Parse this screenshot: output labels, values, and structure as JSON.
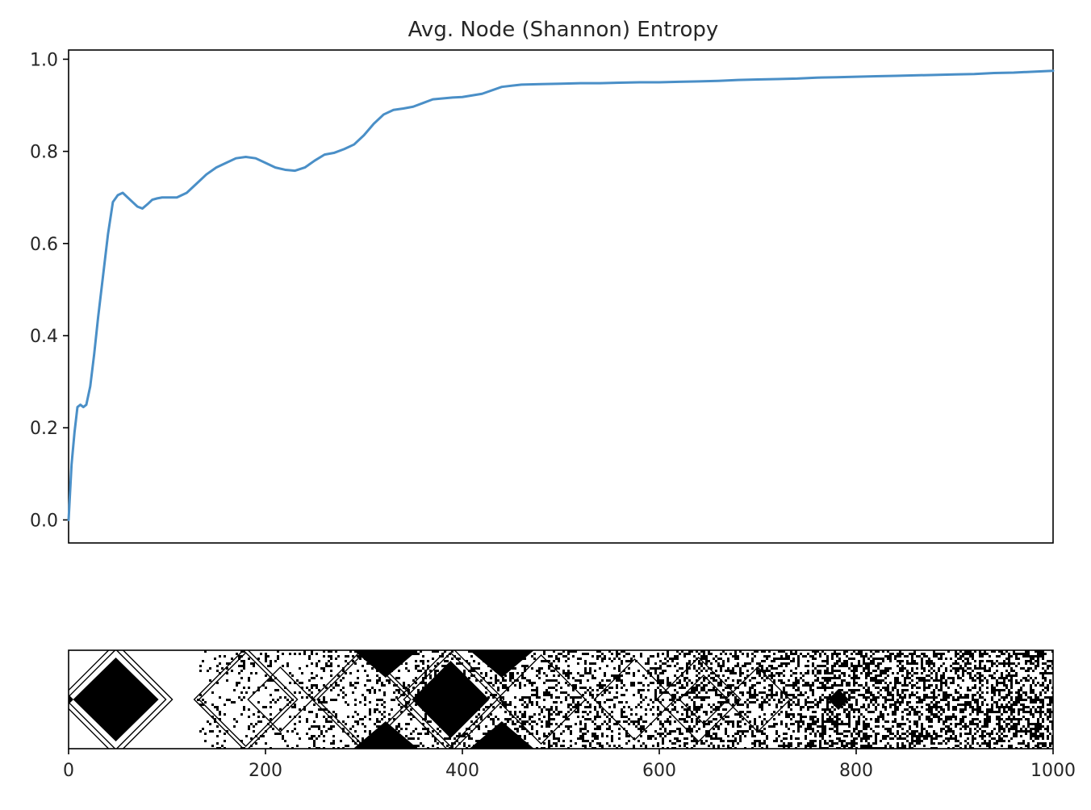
{
  "chart_data": [
    {
      "type": "line",
      "title": "Avg. Node (Shannon) Entropy",
      "xlabel": "",
      "ylabel": "",
      "xlim": [
        0,
        1000
      ],
      "ylim": [
        -0.05,
        1.02
      ],
      "yticks": [
        "0.0",
        "0.2",
        "0.4",
        "0.6",
        "0.8",
        "1.0"
      ],
      "grid": false,
      "color": "#4a8fc7",
      "series": [
        {
          "x": [
            0,
            3,
            6,
            9,
            12,
            15,
            18,
            22,
            26,
            30,
            35,
            40,
            45,
            50,
            55,
            60,
            65,
            70,
            75,
            80,
            85,
            90,
            95,
            100,
            110,
            120,
            130,
            140,
            150,
            160,
            170,
            180,
            190,
            200,
            210,
            220,
            230,
            240,
            250,
            260,
            270,
            280,
            290,
            300,
            310,
            320,
            330,
            340,
            350,
            360,
            370,
            380,
            390,
            400,
            420,
            440,
            460,
            480,
            500,
            520,
            540,
            560,
            580,
            600,
            620,
            640,
            660,
            680,
            700,
            720,
            740,
            760,
            780,
            800,
            820,
            840,
            860,
            880,
            900,
            920,
            940,
            960,
            980,
            1000
          ],
          "y": [
            0.0,
            0.12,
            0.19,
            0.245,
            0.25,
            0.245,
            0.25,
            0.29,
            0.36,
            0.44,
            0.53,
            0.62,
            0.69,
            0.705,
            0.71,
            0.7,
            0.69,
            0.68,
            0.676,
            0.685,
            0.695,
            0.698,
            0.7,
            0.7,
            0.7,
            0.71,
            0.73,
            0.75,
            0.765,
            0.775,
            0.785,
            0.788,
            0.785,
            0.775,
            0.765,
            0.76,
            0.758,
            0.765,
            0.78,
            0.793,
            0.797,
            0.805,
            0.815,
            0.835,
            0.86,
            0.88,
            0.89,
            0.893,
            0.897,
            0.905,
            0.913,
            0.915,
            0.917,
            0.918,
            0.925,
            0.94,
            0.945,
            0.946,
            0.947,
            0.948,
            0.948,
            0.949,
            0.95,
            0.95,
            0.951,
            0.952,
            0.953,
            0.955,
            0.956,
            0.957,
            0.958,
            0.96,
            0.961,
            0.962,
            0.963,
            0.964,
            0.965,
            0.966,
            0.967,
            0.968,
            0.97,
            0.971,
            0.973,
            0.975
          ]
        }
      ]
    },
    {
      "type": "heatmap",
      "title": "",
      "xlabel": "",
      "ylabel": "",
      "xlim": [
        0,
        1000
      ],
      "xticks": [
        "0",
        "200",
        "400",
        "600",
        "800",
        "1000"
      ],
      "colors": [
        "#ffffff",
        "#000000"
      ]
    }
  ]
}
